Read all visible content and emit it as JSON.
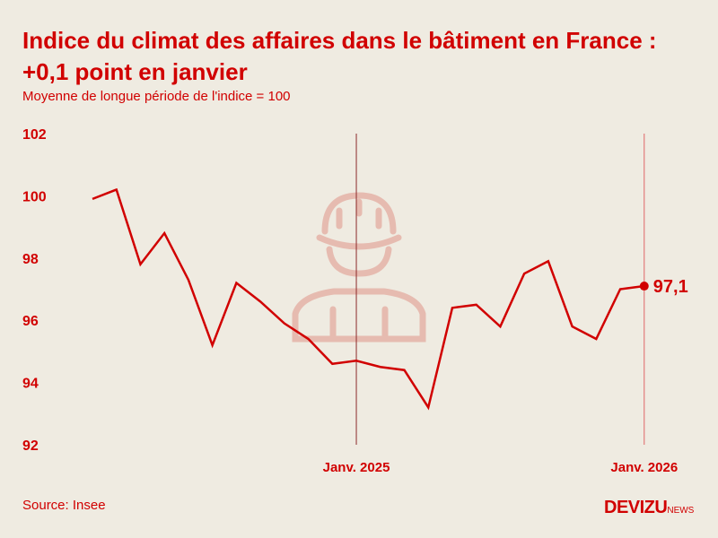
{
  "title_line1": "Indice du climat des affaires dans le bâtiment en France :",
  "title_line2": "+0,1 point en janvier",
  "subtitle": "Moyenne de longue période de l'indice = 100",
  "source": "Source: Insee",
  "logo": {
    "main": "DEVIZU",
    "suffix": "NEWS"
  },
  "colors": {
    "accent": "#d10000",
    "background": "#efebe1",
    "icon": "#e6bbb0"
  },
  "chart_data": {
    "type": "line",
    "title": "Indice du climat des affaires dans le bâtiment en France : +0,1 point en janvier",
    "subtitle": "Moyenne de longue période de l'indice = 100",
    "x": [
      "2024-02",
      "2024-03",
      "2024-04",
      "2024-05",
      "2024-06",
      "2024-07",
      "2024-08",
      "2024-09",
      "2024-10",
      "2024-11",
      "2024-12",
      "2025-01",
      "2025-02",
      "2025-03",
      "2025-04",
      "2025-05",
      "2025-06",
      "2025-07",
      "2025-08",
      "2025-09",
      "2025-10",
      "2025-11",
      "2025-12",
      "2026-01"
    ],
    "values": [
      99.9,
      100.2,
      97.8,
      98.8,
      97.3,
      95.2,
      97.2,
      96.6,
      95.9,
      95.4,
      94.6,
      94.7,
      94.5,
      94.4,
      93.2,
      96.4,
      96.5,
      95.8,
      97.5,
      97.9,
      95.8,
      95.4,
      97.0,
      97.1
    ],
    "ylim": [
      92,
      102
    ],
    "yticks": [
      "92",
      "94",
      "96",
      "98",
      "100",
      "102"
    ],
    "xticks": [
      {
        "index": 11,
        "label": "Janv. 2025"
      },
      {
        "index": 23,
        "label": "Janv. 2026"
      }
    ],
    "last_label": "97,1",
    "grid": false
  }
}
